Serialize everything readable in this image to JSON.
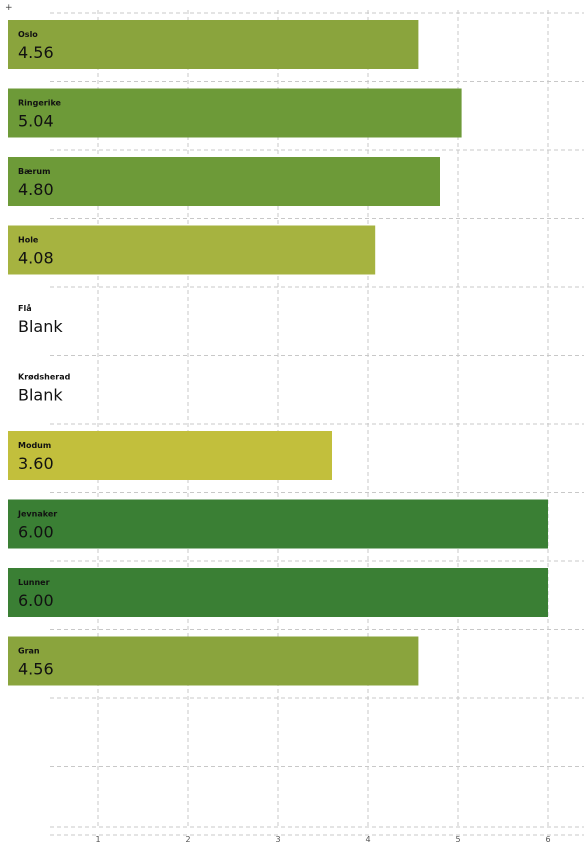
{
  "chart_data": {
    "type": "bar",
    "orientation": "horizontal",
    "categories": [
      "Oslo",
      "Ringerike",
      "Bærum",
      "Hole",
      "Flå",
      "Krødsherad",
      "Modum",
      "Jevnaker",
      "Lunner",
      "Gran"
    ],
    "values": [
      4.56,
      5.04,
      4.8,
      4.08,
      null,
      null,
      3.6,
      6.0,
      6.0,
      4.56
    ],
    "value_labels": [
      "4.56",
      "5.04",
      "4.80",
      "4.08",
      "Blank",
      "Blank",
      "3.60",
      "6.00",
      "6.00",
      "4.56"
    ],
    "xticks": [
      1,
      2,
      3,
      4,
      5,
      6
    ],
    "xlim": [
      0,
      6.4
    ],
    "grid": true,
    "colors": {
      "low": "#c2bf3c",
      "mid": "#a6b340",
      "midhigh": "#8aa43d",
      "high": "#6d9a38",
      "top": "#3a7f34"
    }
  },
  "corner_mark": "+"
}
